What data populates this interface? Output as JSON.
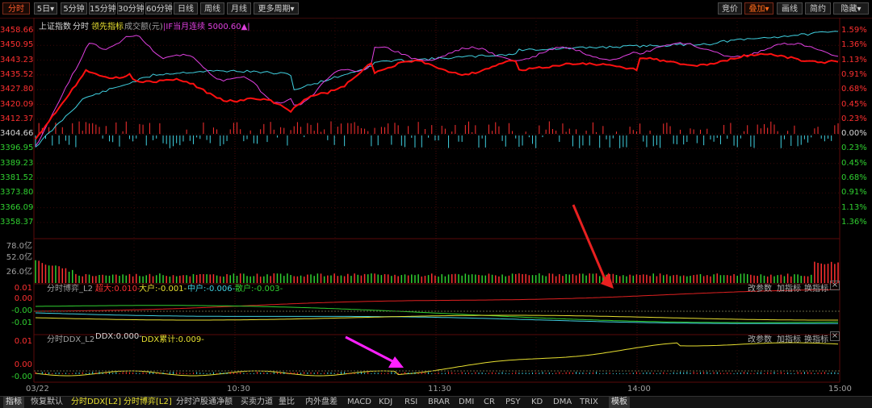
{
  "toolbar": {
    "left_buttons": [
      "分时",
      "5日",
      "5分钟",
      "15分钟",
      "30分钟",
      "60分钟",
      "日线",
      "周线",
      "月线",
      "更多周期"
    ],
    "right_buttons": [
      "竞价",
      "叠加",
      "画线",
      "简约",
      "隐藏"
    ]
  },
  "main_panel": {
    "index_name": "上证指数",
    "chart_kind": "分时",
    "lead_indicator": "领先指标",
    "volume_label": "成交额(元)",
    "overlay_label": "|IF当月连续 5000.60▲|",
    "y_left": [
      "3458.66",
      "3450.95",
      "3443.23",
      "3435.52",
      "3427.80",
      "3420.09",
      "3412.37",
      "3404.66",
      "3396.95",
      "3389.23",
      "3381.52",
      "3373.80",
      "3366.09",
      "3358.37"
    ],
    "y_right": [
      "1.59%",
      "1.36%",
      "1.13%",
      "0.91%",
      "0.68%",
      "0.45%",
      "0.23%",
      "0.00%",
      "0.23%",
      "0.45%",
      "0.68%",
      "0.91%",
      "1.13%",
      "1.36%"
    ],
    "baseline_price": 3404.66
  },
  "volume_panel": {
    "y_left": [
      "78.0亿",
      "52.0亿",
      "26.0亿"
    ]
  },
  "bosai_panel": {
    "title": "分时博弈_L2",
    "super": "超大:0.010-",
    "large": "大户:-0.001-",
    "mid": "中户:-0.006-",
    "retail": "散户:-0.003-",
    "y_left": [
      "0.01",
      "0.00",
      "-0.00",
      "-0.01"
    ],
    "buttons": [
      "改参数",
      "加指标",
      "换指标"
    ],
    "close": "×"
  },
  "ddx_panel": {
    "title": "分时DDX_L2",
    "ddx": "DDX:0.000-",
    "ddx_sum": "DDX累计:0.009-",
    "y_left": [
      "0.01",
      "0.00",
      "-0.00"
    ],
    "buttons": [
      "改参数",
      "加指标",
      "换指标"
    ],
    "close": "×"
  },
  "x_axis": [
    "03/22",
    "10:30",
    "11:30",
    "14:00",
    "15:00"
  ],
  "bottom_tabs": [
    "指标",
    "恢复默认",
    "分时DDX[L2]",
    "分时博弈[L2]",
    "分时沪股通净额",
    "买卖力道",
    "量比",
    "内外盘差",
    "MACD",
    "KDJ",
    "RSI",
    "BRAR",
    "DMI",
    "CR",
    "PSY",
    "KD",
    "DMA",
    "TRIX",
    "模板"
  ],
  "colors": {
    "up": "#ff3030",
    "down": "#30d030",
    "price_line": "#ff1010",
    "avg_line": "#40d0e0",
    "overlay_line": "#e040e0",
    "ddx_line": "#e8e030",
    "annotation_red": "#e82020",
    "annotation_magenta": "#ff20ff"
  }
}
